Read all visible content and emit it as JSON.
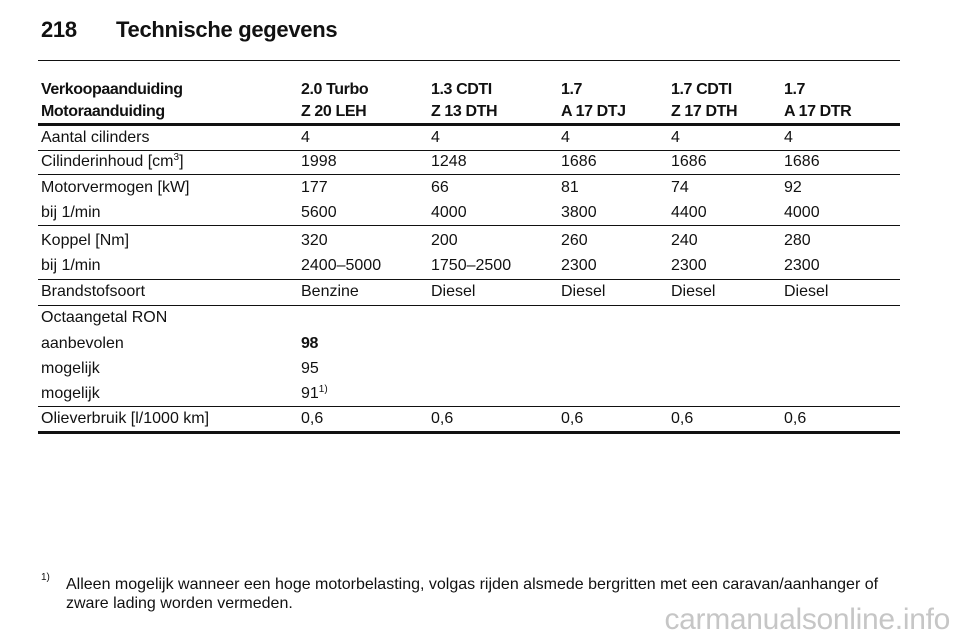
{
  "header": {
    "page_number": "218",
    "title": "Technische gegevens"
  },
  "table": {
    "columns": [
      "",
      "2.0 Turbo",
      "1.3 CDTI",
      "1.7",
      "1.7 CDTI",
      "1.7"
    ],
    "engine_codes": [
      "Motoraanduiding",
      "Z 20 LEH",
      "Z 13 DTH",
      "A 17 DTJ",
      "Z 17 DTH",
      "A 17 DTR"
    ],
    "first_header_label": "Verkoopaanduiding",
    "rows": [
      {
        "label": "Aantal cilinders",
        "values": [
          "4",
          "4",
          "4",
          "4",
          "4"
        ]
      },
      {
        "label": "Cilinderinhoud [cm",
        "label_sup": "3",
        "label_suffix": "]",
        "values": [
          "1998",
          "1248",
          "1686",
          "1686",
          "1686"
        ]
      },
      {
        "label": "Motorvermogen [kW]",
        "values": [
          "177",
          "66",
          "81",
          "74",
          "92"
        ]
      },
      {
        "label": "bij 1/min",
        "values": [
          "5600",
          "4000",
          "3800",
          "4400",
          "4000"
        ]
      },
      {
        "label": "Koppel [Nm]",
        "values": [
          "320",
          "200",
          "260",
          "240",
          "280"
        ]
      },
      {
        "label": "bij 1/min",
        "values": [
          "2400–5000",
          "1750–2500",
          "2300",
          "2300",
          "2300"
        ]
      },
      {
        "label": "Brandstofsoort",
        "values": [
          "Benzine",
          "Diesel",
          "Diesel",
          "Diesel",
          "Diesel"
        ]
      },
      {
        "label": "Octaangetal RON",
        "values": []
      },
      {
        "label": "aanbevolen",
        "values": [
          "98"
        ]
      },
      {
        "label": "mogelijk",
        "values": [
          "95"
        ]
      },
      {
        "label": "mogelijk",
        "values": [
          "91"
        ],
        "value_sup": "1)"
      },
      {
        "label": "Olieverbruik [l/1000 km]",
        "values": [
          "0,6",
          "0,6",
          "0,6",
          "0,6",
          "0,6"
        ]
      }
    ]
  },
  "footnote": {
    "mark": "1)",
    "text": "Alleen mogelijk wanneer een hoge motorbelasting, volgas rijden alsmede bergritten met een caravan/aanhanger of zware lading worden vermeden."
  },
  "watermark": "carmanualsonline.info"
}
